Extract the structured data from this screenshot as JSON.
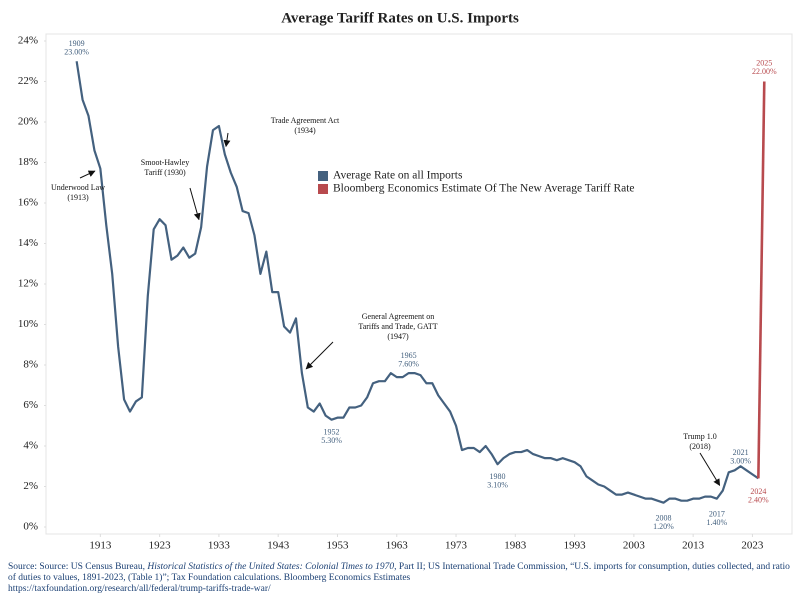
{
  "chart_data": {
    "type": "line",
    "title": "Average Tariff Rates on U.S. Imports",
    "x": [
      1909,
      1910,
      1911,
      1912,
      1913,
      1914,
      1915,
      1916,
      1917,
      1918,
      1919,
      1920,
      1921,
      1922,
      1923,
      1924,
      1925,
      1926,
      1927,
      1928,
      1929,
      1930,
      1931,
      1932,
      1933,
      1934,
      1935,
      1936,
      1937,
      1938,
      1939,
      1940,
      1941,
      1942,
      1943,
      1944,
      1945,
      1946,
      1947,
      1948,
      1949,
      1950,
      1951,
      1952,
      1953,
      1954,
      1955,
      1956,
      1957,
      1958,
      1959,
      1960,
      1961,
      1962,
      1963,
      1964,
      1965,
      1966,
      1967,
      1968,
      1969,
      1970,
      1971,
      1972,
      1973,
      1974,
      1975,
      1976,
      1977,
      1978,
      1979,
      1980,
      1981,
      1982,
      1983,
      1984,
      1985,
      1986,
      1987,
      1988,
      1989,
      1990,
      1991,
      1992,
      1993,
      1994,
      1995,
      1996,
      1997,
      1998,
      1999,
      2000,
      2001,
      2002,
      2003,
      2004,
      2005,
      2006,
      2007,
      2008,
      2009,
      2010,
      2011,
      2012,
      2013,
      2014,
      2015,
      2016,
      2017,
      2018,
      2019,
      2020,
      2021,
      2022,
      2023,
      2024,
      2025
    ],
    "series": [
      {
        "name": "Average Rate on all Imports",
        "color": "#44617f",
        "values": [
          23.0,
          21.1,
          20.3,
          18.6,
          17.7,
          14.9,
          12.5,
          8.9,
          6.3,
          5.7,
          6.2,
          6.4,
          11.4,
          14.7,
          15.2,
          14.9,
          13.2,
          13.4,
          13.8,
          13.3,
          13.5,
          14.8,
          17.8,
          19.6,
          19.8,
          18.4,
          17.5,
          16.8,
          15.6,
          15.5,
          14.4,
          12.5,
          13.6,
          11.6,
          11.6,
          9.9,
          9.6,
          10.3,
          7.6,
          5.9,
          5.7,
          6.1,
          5.5,
          5.3,
          5.4,
          5.4,
          5.9,
          5.9,
          6.0,
          6.4,
          7.1,
          7.2,
          7.2,
          7.6,
          7.4,
          7.4,
          7.6,
          7.6,
          7.5,
          7.1,
          7.1,
          6.5,
          6.1,
          5.7,
          5.0,
          3.8,
          3.9,
          3.9,
          3.7,
          4.0,
          3.6,
          3.1,
          3.4,
          3.6,
          3.7,
          3.7,
          3.8,
          3.6,
          3.5,
          3.4,
          3.4,
          3.3,
          3.4,
          3.3,
          3.2,
          3.0,
          2.5,
          2.3,
          2.1,
          2.0,
          1.8,
          1.6,
          1.6,
          1.7,
          1.6,
          1.5,
          1.4,
          1.4,
          1.3,
          1.2,
          1.4,
          1.4,
          1.3,
          1.3,
          1.4,
          1.4,
          1.5,
          1.5,
          1.4,
          1.8,
          2.7,
          2.8,
          3.0,
          2.8,
          2.6,
          2.4,
          null
        ]
      },
      {
        "name": "Bloomberg Economics Estimate Of The New Average Tariff Rate",
        "color": "#b84a4e",
        "values": [
          null,
          null,
          null,
          null,
          null,
          null,
          null,
          null,
          null,
          null,
          null,
          null,
          null,
          null,
          null,
          null,
          null,
          null,
          null,
          null,
          null,
          null,
          null,
          null,
          null,
          null,
          null,
          null,
          null,
          null,
          null,
          null,
          null,
          null,
          null,
          null,
          null,
          null,
          null,
          null,
          null,
          null,
          null,
          null,
          null,
          null,
          null,
          null,
          null,
          null,
          null,
          null,
          null,
          null,
          null,
          null,
          null,
          null,
          null,
          null,
          null,
          null,
          null,
          null,
          null,
          null,
          null,
          null,
          null,
          null,
          null,
          null,
          null,
          null,
          null,
          null,
          null,
          null,
          null,
          null,
          null,
          null,
          null,
          null,
          null,
          null,
          null,
          null,
          null,
          null,
          null,
          null,
          null,
          null,
          null,
          null,
          null,
          null,
          null,
          null,
          null,
          null,
          null,
          null,
          null,
          null,
          null,
          null,
          null,
          null,
          null,
          null,
          null,
          null,
          null,
          2.4,
          22.0
        ]
      }
    ],
    "xlim": [
      1904,
      2029
    ],
    "xticks": [
      1913,
      1923,
      1933,
      1943,
      1953,
      1963,
      1973,
      1983,
      1993,
      2003,
      2013,
      2023
    ],
    "ylim": [
      0,
      24
    ],
    "yticks": [
      {
        "value": 0,
        "label": "0%"
      },
      {
        "value": 2,
        "label": "2%"
      },
      {
        "value": 4,
        "label": "4%"
      },
      {
        "value": 6,
        "label": "6%"
      },
      {
        "value": 8,
        "label": "8%"
      },
      {
        "value": 10,
        "label": "10%"
      },
      {
        "value": 12,
        "label": "12%"
      },
      {
        "value": 14,
        "label": "14%"
      },
      {
        "value": 16,
        "label": "16%"
      },
      {
        "value": 18,
        "label": "18%"
      },
      {
        "value": 20,
        "label": "20%"
      },
      {
        "value": 22,
        "label": "22%"
      },
      {
        "value": 24,
        "label": "24%"
      }
    ],
    "point_labels": [
      {
        "year": 1909,
        "value_label": "23.00%",
        "color": "#44617f"
      },
      {
        "year": 1952,
        "value_label": "5.30%",
        "color": "#44617f"
      },
      {
        "year": 1965,
        "value_label": "7.60%",
        "color": "#44617f"
      },
      {
        "year": 1980,
        "value_label": "3.10%",
        "color": "#44617f"
      },
      {
        "year": 2008,
        "value_label": "1.20%",
        "color": "#44617f"
      },
      {
        "year": 2017,
        "value_label": "1.40%",
        "color": "#44617f"
      },
      {
        "year": 2021,
        "value_label": "3.00%",
        "color": "#44617f"
      },
      {
        "year": 2024,
        "value_label": "2.40%",
        "color": "#b84a4e"
      },
      {
        "year": 2025,
        "value_label": "22.00%",
        "color": "#b84a4e"
      }
    ],
    "events": [
      {
        "year": 1913,
        "lines": [
          "Underwood Law",
          "(1913)"
        ]
      },
      {
        "year": 1930,
        "lines": [
          "Smoot-Hawley",
          "Tariff (1930)"
        ]
      },
      {
        "year": 1934,
        "lines": [
          "Trade Agreement Act",
          "(1934)"
        ]
      },
      {
        "year": 1947,
        "lines": [
          "General Agreement on",
          "Tariffs and Trade, GATT",
          "(1947)"
        ]
      },
      {
        "year": 2018,
        "lines": [
          "Trump 1.0",
          "(2018)"
        ]
      }
    ],
    "source": [
      "Source: Source: US Census Bureau, ",
      "Historical Statistics of the United States: Colonial Times to 1970",
      ", Part II; US International Trade Commission, “U.S. imports for consumption, duties collected, and ratio of duties to values, 1891-2023, (Table 1)”; Tax Foundation calculations. Bloomberg Economics Estimates"
    ],
    "source_url": "https://taxfoundation.org/research/all/federal/trump-tariffs-trade-war/"
  }
}
